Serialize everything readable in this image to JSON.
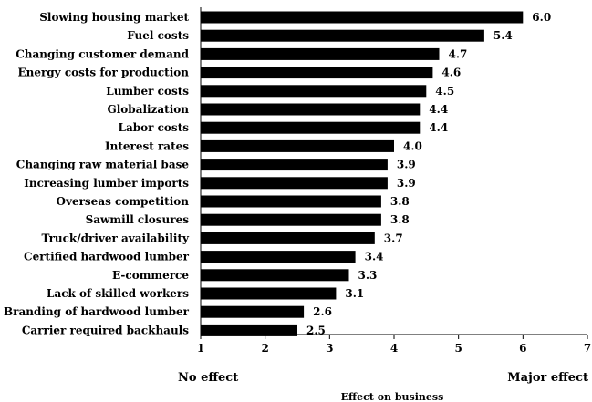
{
  "chart_data": {
    "type": "bar",
    "orientation": "horizontal",
    "categories": [
      "Slowing housing market",
      "Fuel costs",
      "Changing customer demand",
      "Energy costs for production",
      "Lumber costs",
      "Globalization",
      "Labor costs",
      "Interest rates",
      "Changing raw material base",
      "Increasing lumber imports",
      "Overseas competition",
      "Sawmill closures",
      "Truck/driver availability",
      "Certified hardwood lumber",
      "E-commerce",
      "Lack of skilled workers",
      "Branding of hardwood lumber",
      "Carrier required backhauls"
    ],
    "values": [
      6.0,
      5.4,
      4.7,
      4.6,
      4.5,
      4.4,
      4.4,
      4.0,
      3.9,
      3.9,
      3.8,
      3.8,
      3.7,
      3.4,
      3.3,
      3.1,
      2.6,
      2.5
    ],
    "value_labels": [
      "6.0",
      "5.4",
      "4.7",
      "4.6",
      "4.5",
      "4.4",
      "4.4",
      "4.0",
      "3.9",
      "3.9",
      "3.8",
      "3.8",
      "3.7",
      "3.4",
      "3.3",
      "3.1",
      "2.6",
      "2.5"
    ],
    "xlim": [
      1,
      7
    ],
    "xticks": [
      "1",
      "2",
      "3",
      "4",
      "5",
      "6",
      "7"
    ],
    "x_end_labels": {
      "left": "No effect",
      "right": "Major effect"
    },
    "xlabel": "Effect on business",
    "title": "",
    "ylabel": "",
    "grid": false,
    "legend": "none",
    "bar_color": "#000000"
  }
}
